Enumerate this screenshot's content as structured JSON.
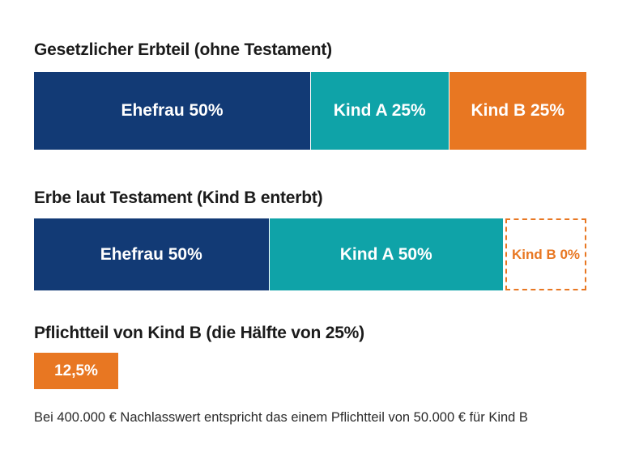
{
  "colors": {
    "ehefrau": "#123a75",
    "kind_a": "#0fa3a8",
    "kind_b": "#e87722"
  },
  "chart_data": [
    {
      "type": "bar",
      "stacked": true,
      "orientation": "horizontal",
      "title": "Gesetzlicher Erbteil (ohne Testament)",
      "segments": [
        {
          "label": "Ehefrau 50%",
          "value": 50,
          "color_key": "ehefrau"
        },
        {
          "label": "Kind A 25%",
          "value": 25,
          "color_key": "kind_a"
        },
        {
          "label": "Kind B 25%",
          "value": 25,
          "color_key": "kind_b"
        }
      ]
    },
    {
      "type": "bar",
      "stacked": true,
      "orientation": "horizontal",
      "title": "Erbe laut Testament (Kind B enterbt)",
      "segments": [
        {
          "label": "Ehefrau 50%",
          "value": 50,
          "color_key": "ehefrau"
        },
        {
          "label": "Kind A 50%",
          "value": 50,
          "color_key": "kind_a"
        },
        {
          "label": "Kind B 0%",
          "value": 0,
          "color_key": "kind_b",
          "style": "dashed"
        }
      ]
    }
  ],
  "pflichtteil": {
    "title": "Pflichtteil von Kind B (die Hälfte von 25%)",
    "value_label": "12,5%"
  },
  "footnote": "Bei 400.000 € Nachlasswert entspricht das einem Pflichtteil von 50.000 € für Kind B"
}
